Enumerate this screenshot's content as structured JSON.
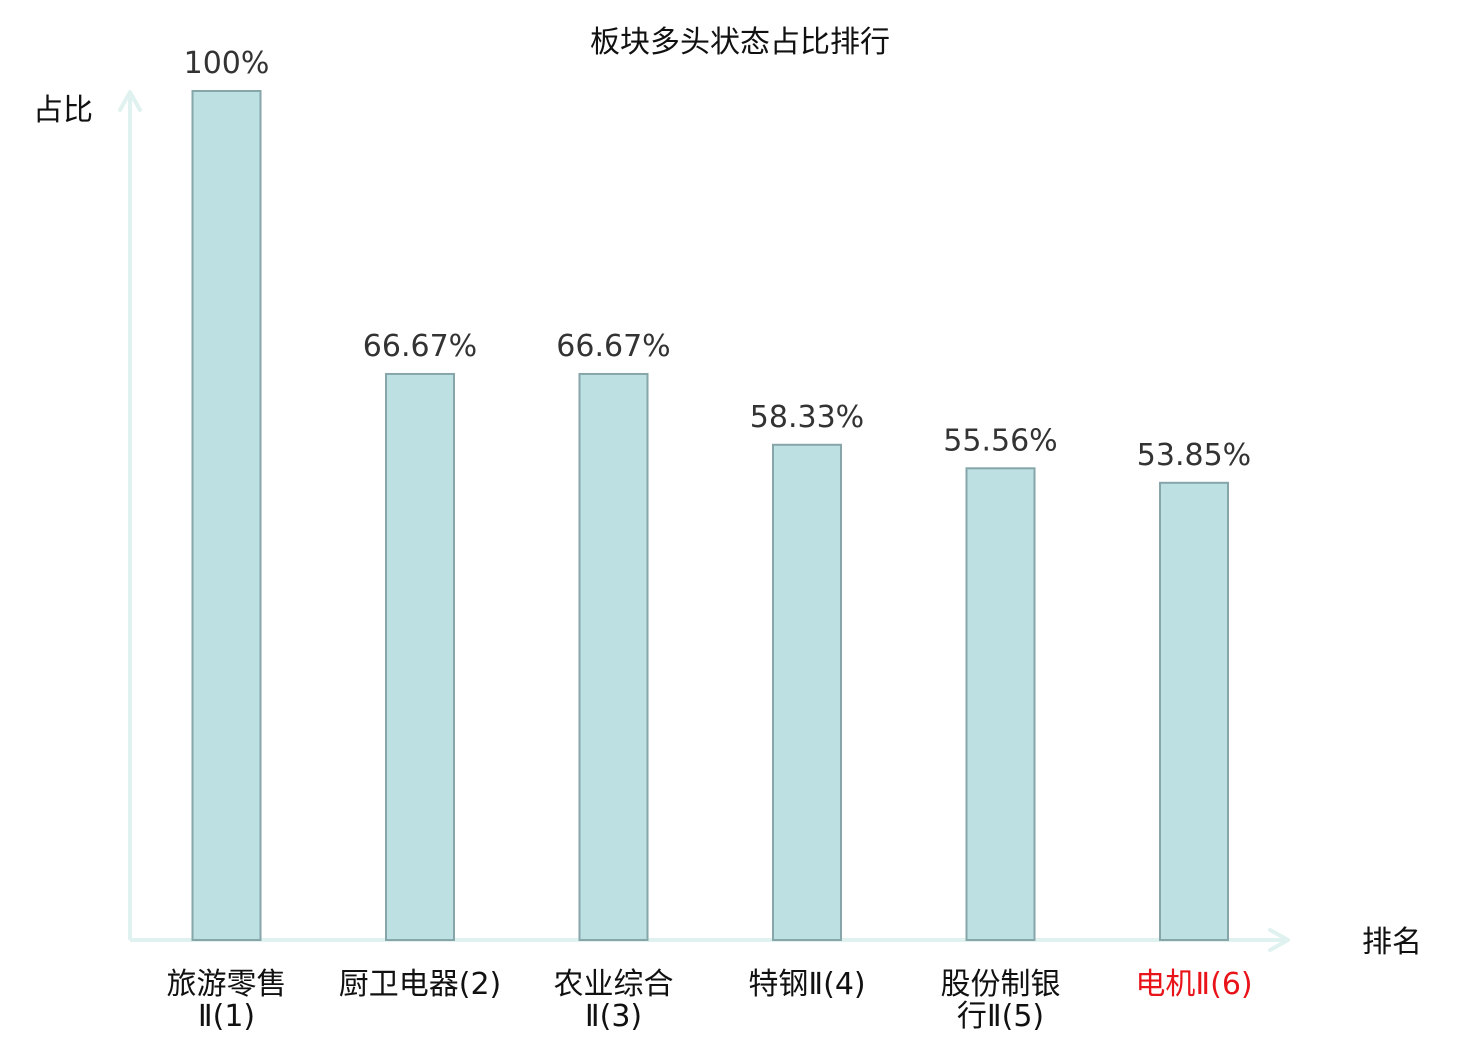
{
  "chart_data": {
    "type": "bar",
    "title": "板块多头状态占比排行",
    "ylabel": "占比",
    "xlabel": "排名",
    "ylim": [
      0,
      100
    ],
    "grid": false,
    "categories": [
      {
        "lines": [
          "旅游零售",
          "Ⅱ(1)"
        ],
        "highlight": false
      },
      {
        "lines": [
          "厨卫电器(2)"
        ],
        "highlight": false
      },
      {
        "lines": [
          "农业综合",
          "Ⅱ(3)"
        ],
        "highlight": false
      },
      {
        "lines": [
          "特钢Ⅱ(4)"
        ],
        "highlight": false
      },
      {
        "lines": [
          "股份制银",
          "行Ⅱ(5)"
        ],
        "highlight": false
      },
      {
        "lines": [
          "电机Ⅱ(6)"
        ],
        "highlight": true
      }
    ],
    "values": [
      100,
      66.67,
      66.67,
      58.33,
      55.56,
      53.85
    ],
    "value_labels": [
      "100%",
      "66.67%",
      "66.67%",
      "58.33%",
      "55.56%",
      "53.85%"
    ]
  },
  "colors": {
    "bar_fill": "#bde0e3",
    "bar_stroke": "#86a6aa",
    "axis": "#e0f2ef",
    "text": "#333333",
    "label": "#111111",
    "highlight": "#e8141a"
  }
}
